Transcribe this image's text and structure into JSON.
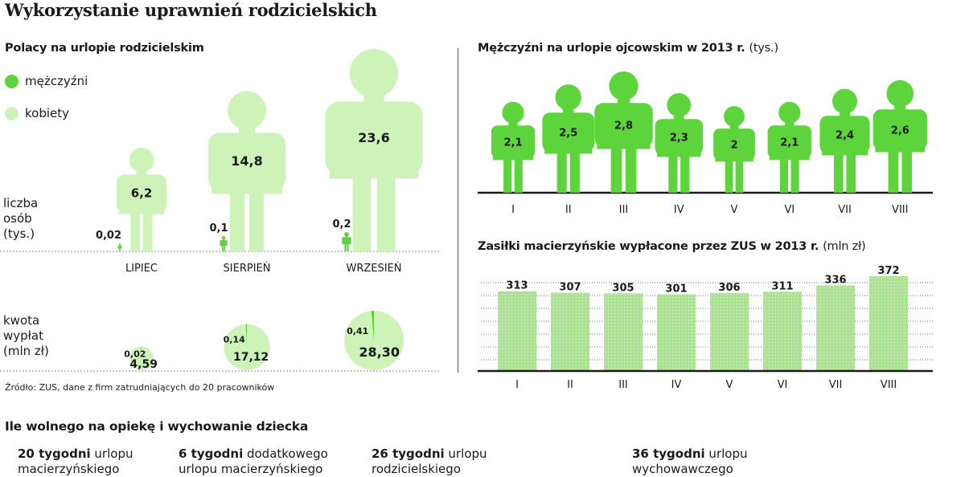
{
  "title": "Wykorzystanie uprawnień rodzicielskich",
  "colors": {
    "men": "#5ed43c",
    "women": "#cdf3b9",
    "bar": "#a8e58d",
    "axis": "#1a1a1a"
  },
  "left_panel": {
    "title": "Polacy na urlopie rodzicielskim",
    "legend": [
      {
        "label": "mężczyźni"
      },
      {
        "label": "kobiety"
      }
    ],
    "people_label": [
      "liczba",
      "osób",
      "(tys.)"
    ],
    "amount_label": [
      "kwota",
      "wypłat",
      "(mln zł)"
    ]
  },
  "source": "Źródło: ZUS, dane  z firm zatrudniających do 20 pracowników",
  "right_top": {
    "title_bold": "Mężczyźni na urlopie ojcowskim w 2013 r.",
    "title_unit": "(tys.)"
  },
  "right_bottom": {
    "title_bold": "Zasiłki macierzyńskie  wypłacone  przez ZUS w 2013 r.",
    "title_unit": "(mln zł)"
  },
  "bottom": {
    "title": "Ile wolnego na opiekę i wychowanie dziecka",
    "items": [
      {
        "bold": "20 tygodni",
        "rest": " urlopu",
        "line2": "macierzyńskiego"
      },
      {
        "bold": "6 tygodni",
        "rest": " dodatkowego",
        "line2": "urlopu macierzyńskiego"
      },
      {
        "bold": "26 tygodni",
        "rest": " urlopu",
        "line2": "rodzicielskiego"
      },
      {
        "bold": "36 tygodni",
        "rest": " urlopu",
        "line2": "wychowawczego"
      }
    ]
  },
  "chart_data": [
    {
      "type": "pictogram",
      "title": "Polacy na urlopie rodzicielskim",
      "ylabel": "liczba osób (tys.)",
      "categories": [
        "LIPIEC",
        "SIERPIEŃ",
        "WRZESIEŃ"
      ],
      "series": [
        {
          "name": "mężczyźni",
          "values": [
            0.02,
            0.1,
            0.2
          ],
          "labels": [
            "0,02",
            "0,1",
            "0,2"
          ]
        },
        {
          "name": "kobiety",
          "values": [
            6.2,
            14.8,
            23.6
          ],
          "labels": [
            "6,2",
            "14,8",
            "23,6"
          ]
        }
      ],
      "legend": "top-left"
    },
    {
      "type": "pie",
      "ylabel": "kwota wypłat (mln zł)",
      "categories": [
        "LIPIEC",
        "SIERPIEŃ",
        "WRZESIEŃ"
      ],
      "series": [
        {
          "name": "mężczyźni",
          "values": [
            0.02,
            0.14,
            0.41
          ],
          "labels": [
            "0,02",
            "0,14",
            "0,41"
          ]
        },
        {
          "name": "kobiety",
          "values": [
            4.59,
            17.12,
            28.3
          ],
          "labels": [
            "4,59",
            "17,12",
            "28,30"
          ]
        }
      ]
    },
    {
      "type": "pictogram",
      "title": "Mężczyźni na urlopie ojcowskim w 2013 r. (tys.)",
      "categories": [
        "I",
        "II",
        "III",
        "IV",
        "V",
        "VI",
        "VII",
        "VIII"
      ],
      "values": [
        2.1,
        2.5,
        2.8,
        2.3,
        2.0,
        2.1,
        2.4,
        2.6
      ],
      "labels": [
        "2,1",
        "2,5",
        "2,8",
        "2,3",
        "2",
        "2,1",
        "2,4",
        "2,6"
      ],
      "ylim": [
        0,
        2.8
      ]
    },
    {
      "type": "bar",
      "title": "Zasiłki macierzyńskie  wypłacone  przez ZUS w 2013 r. (mln zł)",
      "categories": [
        "I",
        "II",
        "III",
        "IV",
        "V",
        "VI",
        "VII",
        "VIII"
      ],
      "values": [
        313,
        307,
        305,
        301,
        306,
        311,
        336,
        372
      ],
      "labels": [
        "313",
        "307",
        "305",
        "301",
        "306",
        "311",
        "336",
        "372"
      ],
      "ylim": [
        0,
        372
      ],
      "grid": true
    }
  ]
}
